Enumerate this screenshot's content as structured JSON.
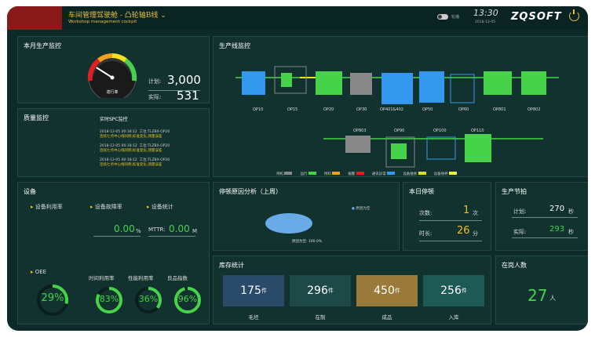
{
  "header": {
    "title": "车间管理驾驶舱 - 凸轮轴B线",
    "dropdown_icon": "chevron-down-icon",
    "subtitle": "Workshop management cockpit",
    "toggle_label": "轮播",
    "time": "13:30",
    "date": "2018-12-05",
    "logo": "ZQSOFT",
    "power_icon": "power-icon"
  },
  "monthly": {
    "title": "本月生产监控",
    "gauge_label": "達行率",
    "plan_label": "计划:",
    "plan_value": "3,000",
    "actual_label": "实际:",
    "actual_value": "531"
  },
  "quality": {
    "title": "质量监控",
    "spc_title": "实时SPC监控",
    "items": [
      {
        "time": "2018-12-05 00:18:12",
        "station": "工位:TLZBX-OP20",
        "msg": "连续七点中心线同侧,标准变化,测量误差"
      },
      {
        "time": "2018-12-05 00:18:12",
        "station": "工位:TLZBX-OP20",
        "msg": "连续七点中心线同侧,标准变化,测量误差"
      },
      {
        "time": "2018-12-05 00:18:12",
        "station": "工位:TLZBX-OP20",
        "msg": "连续七点中心线同侧,标准变化,测量误差"
      }
    ]
  },
  "line": {
    "title": "生产线监控",
    "row1": [
      "OP10",
      "OP15",
      "OP20",
      "OP30",
      "OP401&402",
      "OP50",
      "OP60",
      "OP801",
      "OP802"
    ],
    "row2": [
      "OP803",
      "OP90",
      "OP100",
      "OP110"
    ],
    "legend": [
      {
        "label": "待机",
        "color": "#888888"
      },
      {
        "label": "运行",
        "color": "#46d34a"
      },
      {
        "label": "待料",
        "color": "#f0a020"
      },
      {
        "label": "报警",
        "color": "#e02020"
      },
      {
        "label": "通讯异常",
        "color": "#3399ee"
      },
      {
        "label": "设备维修",
        "color": "#dddd22"
      },
      {
        "label": "设备保养",
        "color": "#eeee44"
      }
    ]
  },
  "equipment": {
    "title": "设备",
    "util_label": "设备利用率",
    "fault_label": "设备故障率",
    "stat_label": "设备统计",
    "fault_value": "0.00",
    "fault_unit": "%",
    "mttr_label": "MTTR:",
    "mttr_value": "0.00",
    "mttr_unit": "M",
    "oee_label": "OEE",
    "oee_value": "29%",
    "time_util_label": "时间利用率",
    "time_util_value": "83%",
    "perf_label": "性能利用率",
    "perf_value": "36%",
    "quality_label": "良品指数",
    "quality_value": "96%"
  },
  "downtime": {
    "title": "停顿原因分析（上周）",
    "legend": "原因为空",
    "slice_label": "原因为空: 100.0%"
  },
  "today_stop": {
    "title": "本日停顿",
    "count_label": "次数:",
    "count_value": "1",
    "count_unit": "次",
    "dur_label": "时长:",
    "dur_value": "26",
    "dur_unit": "分"
  },
  "takt": {
    "title": "生产节拍",
    "plan_label": "计划:",
    "plan_value": "270",
    "plan_unit": "秒",
    "actual_label": "实际:",
    "actual_value": "293",
    "actual_unit": "秒"
  },
  "inventory": {
    "title": "库存统计",
    "items": [
      {
        "value": "175",
        "unit": "件",
        "label": "毛坯",
        "color": "#2a4a6a"
      },
      {
        "value": "296",
        "unit": "件",
        "label": "在制",
        "color": "#1d4a48"
      },
      {
        "value": "450",
        "unit": "件",
        "label": "成品",
        "color": "#9a7a3a"
      },
      {
        "value": "256",
        "unit": "件",
        "label": "入库",
        "color": "#1d5a55"
      }
    ]
  },
  "staff": {
    "title": "在岗人数",
    "value": "27",
    "unit": "人"
  },
  "values": {
    "gauge": 0.18,
    "oee": 0.29,
    "time_util": 0.83,
    "perf": 0.36,
    "quality": 0.96
  }
}
